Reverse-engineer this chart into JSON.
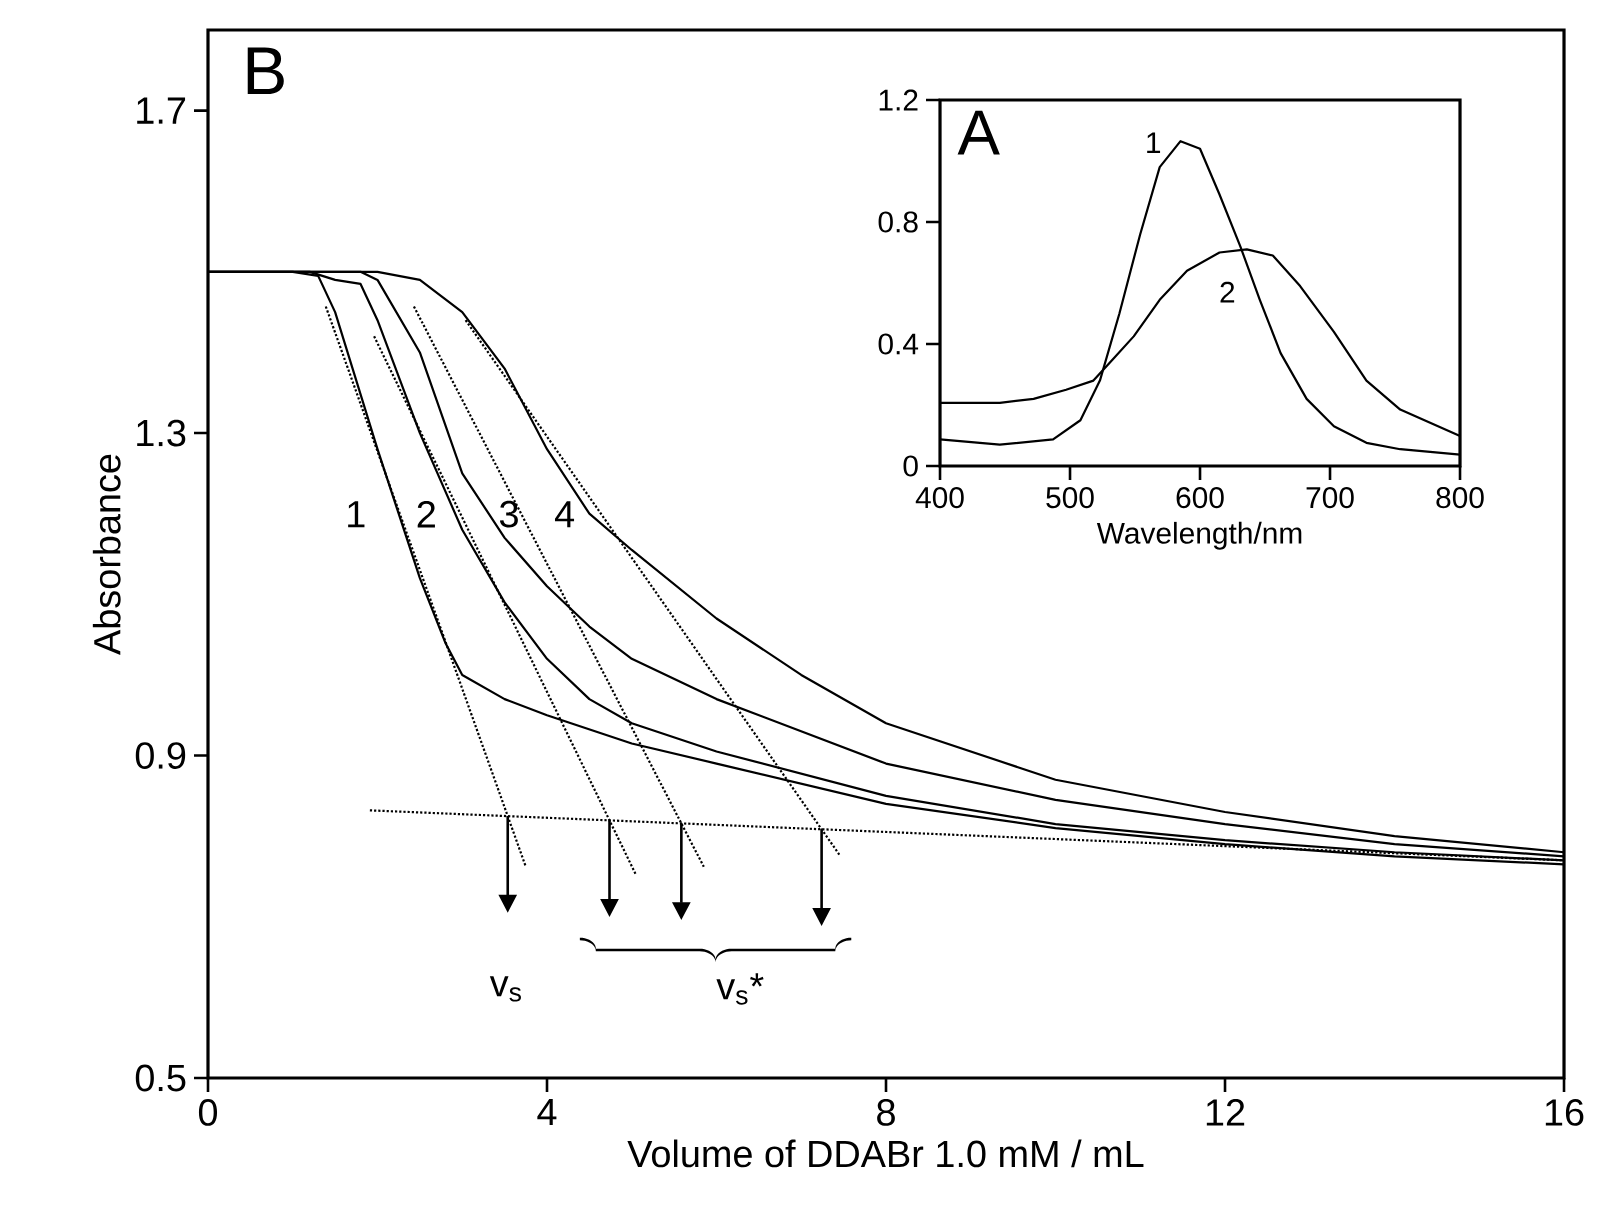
{
  "chart_data": [
    {
      "type": "line",
      "title": "B",
      "xlabel": "Volume of DDABr 1.0 mM / mL",
      "ylabel": "Absorbance",
      "xlim": [
        0,
        16
      ],
      "xticks": [
        0,
        4,
        8,
        12,
        16
      ],
      "ylim": [
        0.5,
        1.8
      ],
      "yticks": [
        0.5,
        0.9,
        1.3,
        1.7
      ],
      "series": [
        {
          "color": "#000000",
          "line_style": "solid",
          "x": [
            0,
            1,
            1.3,
            1.5,
            2,
            2.5,
            2.8,
            3,
            3.5,
            4,
            5,
            6,
            8,
            10,
            12,
            14,
            16
          ],
          "values": [
            1.5,
            1.5,
            1.495,
            1.45,
            1.28,
            1.12,
            1.04,
            1.0,
            0.97,
            0.95,
            0.915,
            0.89,
            0.84,
            0.81,
            0.79,
            0.775,
            0.765
          ]
        },
        {
          "color": "#000000",
          "line_style": "solid",
          "x": [
            0,
            1.2,
            1.5,
            1.8,
            2,
            2.5,
            3,
            3.5,
            4,
            4.5,
            5,
            6,
            8,
            10,
            12,
            14,
            16
          ],
          "values": [
            1.5,
            1.5,
            1.49,
            1.485,
            1.44,
            1.3,
            1.18,
            1.09,
            1.02,
            0.97,
            0.94,
            0.905,
            0.85,
            0.815,
            0.795,
            0.78,
            0.77
          ]
        },
        {
          "color": "#000000",
          "line_style": "solid",
          "x": [
            0,
            1.8,
            2,
            2.5,
            3,
            3.5,
            4,
            4.5,
            5,
            6,
            8,
            10,
            12,
            14,
            16
          ],
          "values": [
            1.5,
            1.5,
            1.49,
            1.4,
            1.25,
            1.17,
            1.11,
            1.06,
            1.02,
            0.97,
            0.89,
            0.845,
            0.815,
            0.79,
            0.775
          ]
        },
        {
          "color": "#000000",
          "line_style": "solid",
          "x": [
            0,
            2,
            2.5,
            3,
            3.5,
            4,
            4.5,
            5,
            6,
            7,
            8,
            10,
            12,
            14,
            16
          ],
          "values": [
            1.5,
            1.5,
            1.49,
            1.45,
            1.38,
            1.28,
            1.2,
            1.155,
            1.07,
            1.0,
            0.94,
            0.87,
            0.83,
            0.8,
            0.78
          ]
        },
        {
          "color": "#000000",
          "line_style": "dotted",
          "x": [
            1.39,
            3.75
          ],
          "values": [
            1.457,
            0.762
          ]
        },
        {
          "color": "#000000",
          "line_style": "dotted",
          "x": [
            1.96,
            5.05
          ],
          "values": [
            1.42,
            0.752
          ]
        },
        {
          "color": "#000000",
          "line_style": "dotted",
          "x": [
            2.43,
            5.85
          ],
          "values": [
            1.457,
            0.762
          ]
        },
        {
          "color": "#000000",
          "line_style": "dotted",
          "x": [
            3.04,
            7.45
          ],
          "values": [
            1.44,
            0.777
          ]
        },
        {
          "color": "#000000",
          "line_style": "dotted",
          "x": [
            1.91,
            16
          ],
          "values": [
            0.832,
            0.77
          ]
        }
      ],
      "annotations": [
        "1",
        "2",
        "3",
        "4",
        "v$_{s}$",
        "v$_{s}$*"
      ]
    },
    {
      "type": "line",
      "title": "A",
      "xlabel": "Wavelength/nm",
      "xlim": [
        400,
        800
      ],
      "xticks": [
        400,
        500,
        600,
        700,
        800
      ],
      "ylim": [
        0,
        1.2
      ],
      "yticks": [
        0,
        0.4,
        0.8,
        1.2
      ],
      "series": [
        {
          "color": "#000000",
          "line_style": "solid",
          "x": [
            400,
            446,
            487,
            508,
            523,
            538,
            554,
            569,
            585,
            600,
            615,
            631,
            646,
            662,
            682,
            703,
            728,
            754,
            800
          ],
          "values": [
            0.087,
            0.07,
            0.087,
            0.15,
            0.28,
            0.5,
            0.76,
            0.98,
            1.065,
            1.04,
            0.89,
            0.72,
            0.545,
            0.37,
            0.22,
            0.13,
            0.076,
            0.055,
            0.037
          ]
        },
        {
          "color": "#000000",
          "line_style": "solid",
          "x": [
            400,
            446,
            472,
            497,
            518,
            533,
            549,
            569,
            590,
            615,
            636,
            656,
            677,
            703,
            728,
            754,
            800
          ],
          "values": [
            0.207,
            0.207,
            0.22,
            0.25,
            0.28,
            0.35,
            0.425,
            0.545,
            0.64,
            0.7,
            0.71,
            0.69,
            0.59,
            0.44,
            0.28,
            0.185,
            0.098
          ]
        }
      ],
      "annotations": [
        "1",
        "2"
      ]
    }
  ]
}
